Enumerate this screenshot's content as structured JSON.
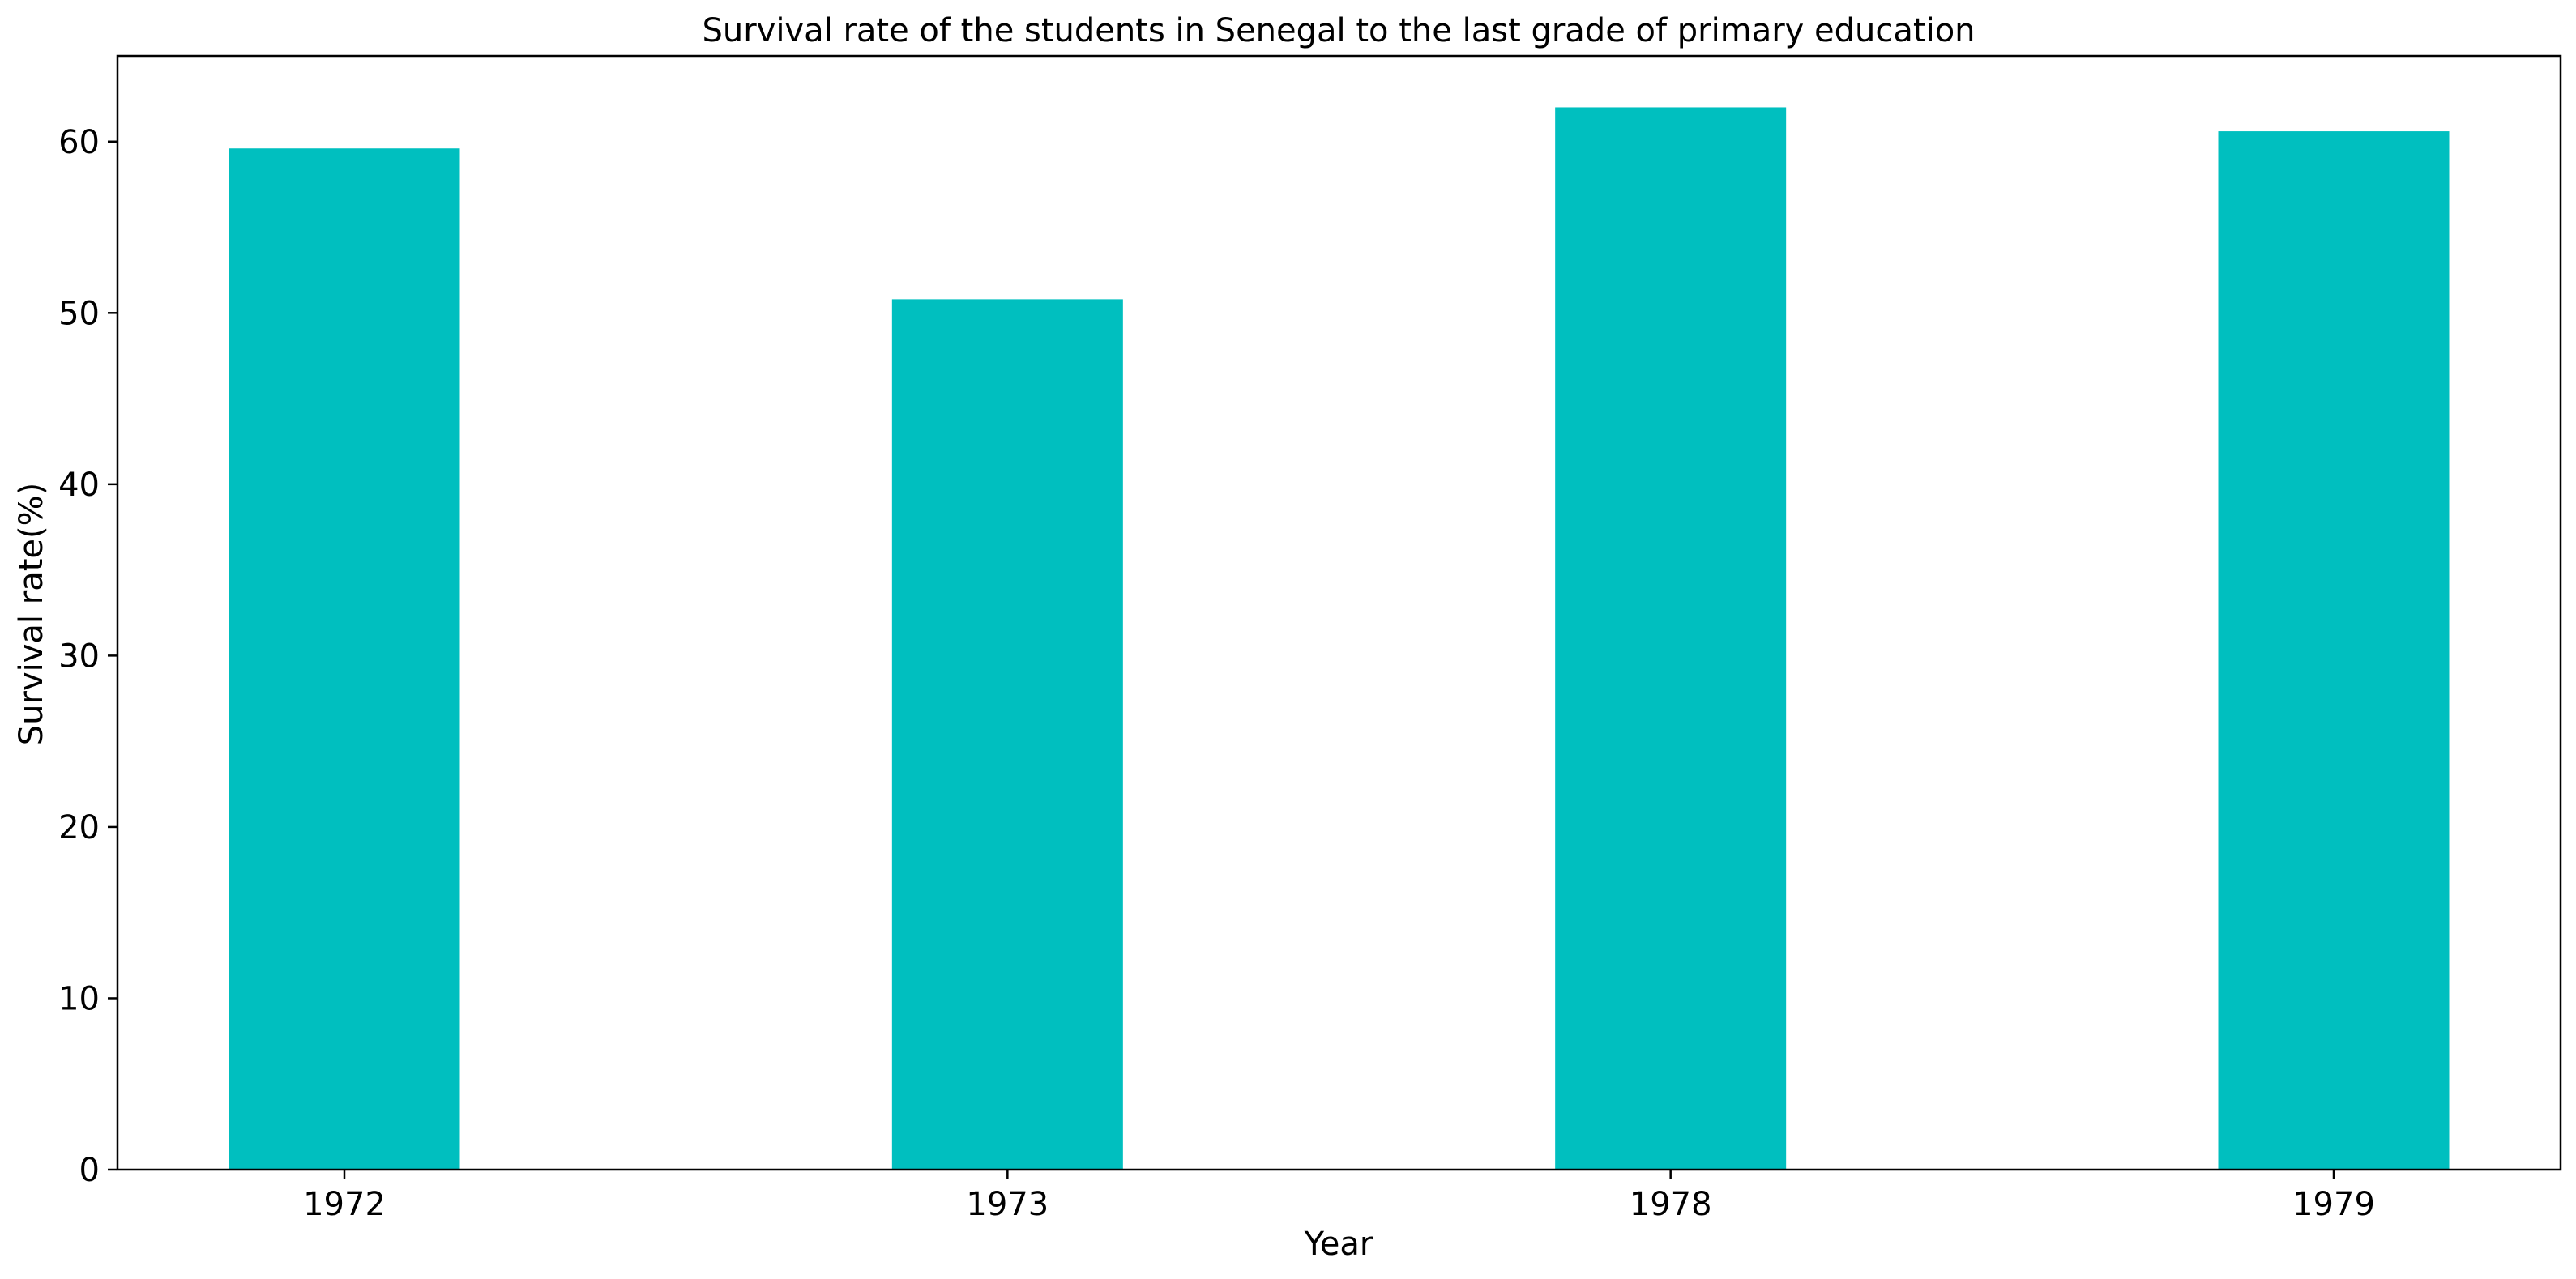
{
  "chart_data": {
    "type": "bar",
    "title": "Survival rate of the students in Senegal to the last grade of primary education",
    "xlabel": "Year",
    "ylabel": "Survival rate(%)",
    "categories": [
      "1972",
      "1973",
      "1978",
      "1979"
    ],
    "values": [
      59.6,
      50.8,
      62.0,
      60.6
    ],
    "ylim": [
      0,
      65
    ],
    "yticks": [
      0,
      10,
      20,
      30,
      40,
      50,
      60
    ],
    "bar_color": "#00bfbf",
    "grid": false,
    "legend": "none"
  }
}
